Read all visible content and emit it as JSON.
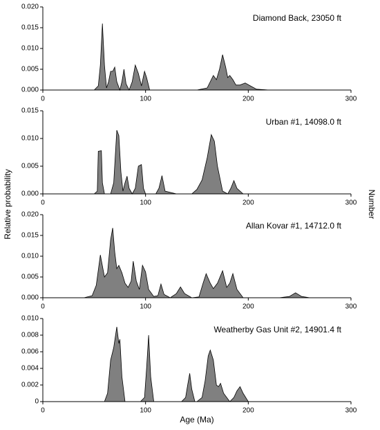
{
  "axis_labels": {
    "y": "Relative probability",
    "y2": "Number",
    "x": "Age (Ma)"
  },
  "chart_data": [
    {
      "type": "area",
      "title": "Diamond Back, 23050 ft",
      "color": "#808080",
      "x": [
        0,
        50,
        54,
        56,
        58,
        60,
        62,
        64,
        66,
        68,
        70,
        72,
        75,
        77,
        79,
        81,
        84,
        87,
        90,
        93,
        96,
        99,
        101,
        104,
        110,
        150,
        160,
        163,
        166,
        169,
        172,
        175,
        178,
        180,
        182,
        185,
        188,
        192,
        197,
        202,
        208,
        220,
        300
      ],
      "values": [
        0,
        0,
        0.001,
        0.006,
        0.016,
        0.006,
        0.0005,
        0.002,
        0.0045,
        0.0045,
        0.0055,
        0.002,
        0,
        0.002,
        0.005,
        0.0015,
        0,
        0.002,
        0.006,
        0.004,
        0.001,
        0.0045,
        0.003,
        0,
        0,
        0,
        0.0005,
        0.002,
        0.0035,
        0.0025,
        0.005,
        0.0085,
        0.0055,
        0.003,
        0.0035,
        0.0025,
        0.0012,
        0.0012,
        0.0017,
        0.001,
        0.0002,
        0,
        0
      ],
      "xlim": [
        0,
        300
      ],
      "xticks": [
        0,
        100,
        200,
        300
      ],
      "ylim": [
        0,
        0.02
      ],
      "yticks": [
        {
          "value": 0,
          "label": "0.000"
        },
        {
          "value": 0.005,
          "label": "0.005"
        },
        {
          "value": 0.01,
          "label": "0.010"
        },
        {
          "value": 0.015,
          "label": "0.015"
        },
        {
          "value": 0.02,
          "label": "0.020"
        }
      ]
    },
    {
      "type": "area",
      "title": "Urban #1, 14098.0 ft",
      "color": "#808080",
      "x": [
        0,
        50,
        53,
        54,
        57,
        58,
        60,
        66,
        69,
        72,
        74,
        76,
        78,
        80,
        82,
        84,
        87,
        90,
        93,
        96,
        98,
        100,
        110,
        113,
        116,
        119,
        130,
        145,
        150,
        155,
        160,
        164,
        167,
        170,
        175,
        180,
        183,
        186,
        189,
        195,
        300
      ],
      "values": [
        0,
        0,
        0.0005,
        0.0077,
        0.0078,
        0.002,
        0,
        0,
        0.002,
        0.0115,
        0.0105,
        0.004,
        0.0005,
        0.002,
        0.0032,
        0.001,
        0,
        0.001,
        0.005,
        0.0053,
        0.001,
        0,
        0,
        0.001,
        0.0033,
        0.0005,
        0,
        0,
        0.0008,
        0.0025,
        0.0065,
        0.0107,
        0.0095,
        0.005,
        0.0005,
        0,
        0.001,
        0.0024,
        0.001,
        0,
        0
      ],
      "xlim": [
        0,
        300
      ],
      "xticks": [
        0,
        100,
        200,
        300
      ],
      "ylim": [
        0,
        0.015
      ],
      "yticks": [
        {
          "value": 0,
          "label": "0.000"
        },
        {
          "value": 0.005,
          "label": "0.005"
        },
        {
          "value": 0.01,
          "label": "0.010"
        },
        {
          "value": 0.015,
          "label": "0.015"
        }
      ]
    },
    {
      "type": "area",
      "title": "Allan Kovar #1, 14712.0 ft",
      "color": "#808080",
      "x": [
        0,
        40,
        48,
        52,
        56,
        60,
        63,
        66,
        68,
        70,
        72,
        74,
        77,
        80,
        83,
        86,
        88,
        91,
        94,
        97,
        100,
        103,
        108,
        112,
        115,
        118,
        124,
        130,
        134,
        138,
        145,
        152,
        156,
        159,
        163,
        166,
        170,
        175,
        179,
        182,
        185,
        189,
        195,
        230,
        240,
        246,
        252,
        260,
        300
      ],
      "values": [
        0,
        0,
        0.0005,
        0.003,
        0.0103,
        0.005,
        0.006,
        0.014,
        0.0168,
        0.011,
        0.007,
        0.0078,
        0.006,
        0.0035,
        0.0025,
        0.004,
        0.0088,
        0.004,
        0.002,
        0.0078,
        0.0062,
        0.002,
        0.0003,
        0.0005,
        0.0033,
        0.0008,
        0,
        0.001,
        0.0026,
        0.001,
        0,
        0.0002,
        0.0035,
        0.0058,
        0.0035,
        0.0022,
        0.0035,
        0.0065,
        0.0025,
        0.0035,
        0.0058,
        0.002,
        0,
        0,
        0.0003,
        0.0012,
        0.0003,
        0,
        0
      ],
      "xlim": [
        0,
        300
      ],
      "xticks": [
        0,
        100,
        200,
        300
      ],
      "ylim": [
        0,
        0.02
      ],
      "yticks": [
        {
          "value": 0,
          "label": "0.000"
        },
        {
          "value": 0.005,
          "label": "0.005"
        },
        {
          "value": 0.01,
          "label": "0.010"
        },
        {
          "value": 0.015,
          "label": "0.015"
        },
        {
          "value": 0.02,
          "label": "0.020"
        }
      ]
    },
    {
      "type": "area",
      "title": "Weatherby Gas Unit #2, 14901.4 ft",
      "color": "#808080",
      "x": [
        0,
        60,
        63,
        66,
        69,
        72,
        74,
        75,
        77,
        80,
        95,
        99,
        101,
        103,
        105,
        108,
        135,
        139,
        141,
        143,
        145,
        148,
        150,
        155,
        158,
        161,
        163,
        166,
        169,
        171,
        173,
        176,
        182,
        186,
        189,
        192,
        195,
        200,
        300
      ],
      "values": [
        0,
        0,
        0.001,
        0.005,
        0.0065,
        0.009,
        0.007,
        0.0075,
        0.003,
        0,
        0,
        0.0005,
        0.004,
        0.008,
        0.003,
        0,
        0,
        0.0005,
        0.002,
        0.0034,
        0.0015,
        0,
        0,
        0.0005,
        0.0025,
        0.0055,
        0.0062,
        0.005,
        0.002,
        0.0018,
        0.0022,
        0.001,
        0,
        0.0005,
        0.0013,
        0.0018,
        0.001,
        0,
        0
      ],
      "xlim": [
        0,
        300
      ],
      "xticks": [
        0,
        100,
        200,
        300
      ],
      "ylim": [
        0,
        0.01
      ],
      "yticks": [
        {
          "value": 0,
          "label": "0"
        },
        {
          "value": 0.002,
          "label": "0.002"
        },
        {
          "value": 0.004,
          "label": "0.004"
        },
        {
          "value": 0.006,
          "label": "0.006"
        },
        {
          "value": 0.008,
          "label": "0.008"
        },
        {
          "value": 0.01,
          "label": "0.010"
        }
      ]
    }
  ]
}
